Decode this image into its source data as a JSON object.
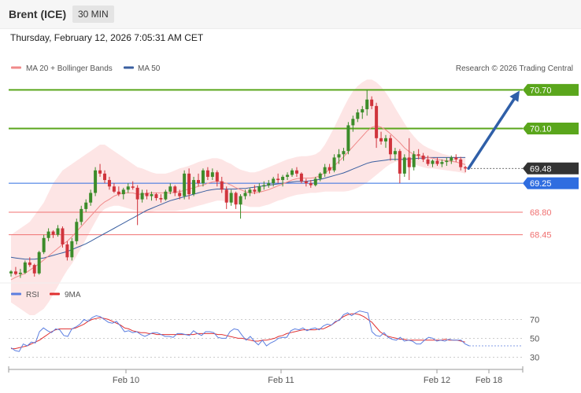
{
  "header": {
    "instrument": "Brent (ICE)",
    "interval": "30 MIN"
  },
  "timestamp": "Thursday, February 12, 2026 7:05:31 AM CET",
  "copyright": "Research © 2026 Trading Central",
  "colors": {
    "up": "#3c8c2a",
    "down": "#d0343c",
    "bollinger_fill": "#fde0e0",
    "ma20": "#f08a8a",
    "ma50": "#3a5fa0",
    "resistance": "#5aa61c",
    "pivot": "#2f6de0",
    "support": "#f07070",
    "arrow": "#2f5fa8",
    "rsi": "#5b7ee0",
    "rsi_ma": "#e03030",
    "price_tag": "#333333"
  },
  "chart_data": [
    {
      "type": "candlestick",
      "legend": [
        {
          "name": "MA 20 + Bollinger Bands",
          "color": "#f08a8a"
        },
        {
          "name": "MA 50",
          "color": "#3a5fa0"
        }
      ],
      "x_labels": [
        "Feb 10",
        "Feb 11",
        "Feb 12",
        "Feb 18"
      ],
      "ylim": [
        67.75,
        70.9
      ],
      "levels": [
        {
          "label": "70.70",
          "value": 70.7,
          "kind": "resistance"
        },
        {
          "label": "70.10",
          "value": 70.1,
          "kind": "resistance"
        },
        {
          "label": "69.25",
          "value": 69.25,
          "kind": "pivot"
        },
        {
          "label": "68.80",
          "value": 68.8,
          "kind": "support"
        },
        {
          "label": "68.45",
          "value": 68.45,
          "kind": "support"
        }
      ],
      "last_price": {
        "label": "69.48",
        "value": 69.48
      },
      "ohlc": [
        [
          67.85,
          67.9,
          67.8,
          67.88
        ],
        [
          67.88,
          67.95,
          67.82,
          67.84
        ],
        [
          67.84,
          67.92,
          67.78,
          67.86
        ],
        [
          67.86,
          68.05,
          67.84,
          68.02
        ],
        [
          68.02,
          68.1,
          67.95,
          67.98
        ],
        [
          67.98,
          68.0,
          67.8,
          67.85
        ],
        [
          67.85,
          68.2,
          67.83,
          68.18
        ],
        [
          68.18,
          68.45,
          68.15,
          68.4
        ],
        [
          68.4,
          68.55,
          68.35,
          68.5
        ],
        [
          68.5,
          68.52,
          68.4,
          68.45
        ],
        [
          68.45,
          68.6,
          68.42,
          68.55
        ],
        [
          68.55,
          68.58,
          68.25,
          68.3
        ],
        [
          68.3,
          68.35,
          68.05,
          68.1
        ],
        [
          68.1,
          68.4,
          68.05,
          68.35
        ],
        [
          68.35,
          68.7,
          68.3,
          68.65
        ],
        [
          68.65,
          68.9,
          68.6,
          68.85
        ],
        [
          68.85,
          69.0,
          68.8,
          68.95
        ],
        [
          68.95,
          69.15,
          68.9,
          69.1
        ],
        [
          69.1,
          69.5,
          69.05,
          69.45
        ],
        [
          69.45,
          69.55,
          69.35,
          69.4
        ],
        [
          69.4,
          69.45,
          69.25,
          69.3
        ],
        [
          69.3,
          69.35,
          69.15,
          69.2
        ],
        [
          69.2,
          69.25,
          69.1,
          69.12
        ],
        [
          69.12,
          69.2,
          69.05,
          69.08
        ],
        [
          69.08,
          69.18,
          69.0,
          69.15
        ],
        [
          69.15,
          69.25,
          69.1,
          69.2
        ],
        [
          69.2,
          69.28,
          69.15,
          69.18
        ],
        [
          69.18,
          69.22,
          68.6,
          69.0
        ],
        [
          69.0,
          69.15,
          68.95,
          69.1
        ],
        [
          69.1,
          69.15,
          69.0,
          69.05
        ],
        [
          69.05,
          69.12,
          68.98,
          69.08
        ],
        [
          69.08,
          69.1,
          68.98,
          69.02
        ],
        [
          69.02,
          69.08,
          68.95,
          69.0
        ],
        [
          69.0,
          69.15,
          68.98,
          69.12
        ],
        [
          69.12,
          69.25,
          69.08,
          69.2
        ],
        [
          69.2,
          69.22,
          69.05,
          69.1
        ],
        [
          69.1,
          69.15,
          69.0,
          69.05
        ],
        [
          69.05,
          69.45,
          69.0,
          69.4
        ],
        [
          69.4,
          69.48,
          69.0,
          69.08
        ],
        [
          69.08,
          69.35,
          69.05,
          69.3
        ],
        [
          69.3,
          69.4,
          69.2,
          69.25
        ],
        [
          69.25,
          69.48,
          69.2,
          69.45
        ],
        [
          69.45,
          69.5,
          69.3,
          69.35
        ],
        [
          69.35,
          69.48,
          69.3,
          69.42
        ],
        [
          69.42,
          69.45,
          69.2,
          69.28
        ],
        [
          69.28,
          69.35,
          69.1,
          69.15
        ],
        [
          69.15,
          69.2,
          68.85,
          68.95
        ],
        [
          68.95,
          69.15,
          68.9,
          69.1
        ],
        [
          69.1,
          69.12,
          68.85,
          68.92
        ],
        [
          68.92,
          69.08,
          68.7,
          69.05
        ],
        [
          69.05,
          69.15,
          69.0,
          69.1
        ],
        [
          69.1,
          69.18,
          69.05,
          69.15
        ],
        [
          69.15,
          69.22,
          69.08,
          69.12
        ],
        [
          69.12,
          69.25,
          69.1,
          69.2
        ],
        [
          69.2,
          69.28,
          69.15,
          69.22
        ],
        [
          69.22,
          69.3,
          69.18,
          69.25
        ],
        [
          69.25,
          69.35,
          69.2,
          69.32
        ],
        [
          69.32,
          69.4,
          69.25,
          69.3
        ],
        [
          69.3,
          69.38,
          69.2,
          69.35
        ],
        [
          69.35,
          69.42,
          69.3,
          69.38
        ],
        [
          69.38,
          69.48,
          69.35,
          69.45
        ],
        [
          69.45,
          69.5,
          69.35,
          69.4
        ],
        [
          69.4,
          69.42,
          69.25,
          69.28
        ],
        [
          69.28,
          69.32,
          69.2,
          69.25
        ],
        [
          69.25,
          69.3,
          69.18,
          69.22
        ],
        [
          69.22,
          69.35,
          69.2,
          69.32
        ],
        [
          69.32,
          69.42,
          69.28,
          69.4
        ],
        [
          69.4,
          69.55,
          69.35,
          69.5
        ],
        [
          69.5,
          69.55,
          69.4,
          69.45
        ],
        [
          69.45,
          69.7,
          69.42,
          69.65
        ],
        [
          69.65,
          69.78,
          69.55,
          69.7
        ],
        [
          69.7,
          69.8,
          69.6,
          69.75
        ],
        [
          69.75,
          70.2,
          69.7,
          70.15
        ],
        [
          70.15,
          70.3,
          70.05,
          70.25
        ],
        [
          70.25,
          70.4,
          70.2,
          70.35
        ],
        [
          70.35,
          70.45,
          70.25,
          70.4
        ],
        [
          70.4,
          70.7,
          70.3,
          70.55
        ],
        [
          70.55,
          70.6,
          70.4,
          70.45
        ],
        [
          70.45,
          70.5,
          69.8,
          69.95
        ],
        [
          69.95,
          70.05,
          69.85,
          69.9
        ],
        [
          69.9,
          70.0,
          69.8,
          69.95
        ],
        [
          69.95,
          70.0,
          69.6,
          69.7
        ],
        [
          69.7,
          69.8,
          69.6,
          69.75
        ],
        [
          69.75,
          69.78,
          69.25,
          69.4
        ],
        [
          69.4,
          69.7,
          69.35,
          69.65
        ],
        [
          69.65,
          69.95,
          69.3,
          69.5
        ],
        [
          69.5,
          69.75,
          69.45,
          69.7
        ],
        [
          69.7,
          69.78,
          69.62,
          69.68
        ],
        [
          69.68,
          69.72,
          69.58,
          69.62
        ],
        [
          69.62,
          69.68,
          69.52,
          69.55
        ],
        [
          69.55,
          69.62,
          69.5,
          69.6
        ],
        [
          69.6,
          69.65,
          69.52,
          69.55
        ],
        [
          69.55,
          69.62,
          69.5,
          69.58
        ],
        [
          69.58,
          69.65,
          69.52,
          69.6
        ],
        [
          69.6,
          69.68,
          69.55,
          69.65
        ],
        [
          69.65,
          69.7,
          69.58,
          69.62
        ],
        [
          69.62,
          69.66,
          69.45,
          69.5
        ],
        [
          69.5,
          69.52,
          69.42,
          69.48
        ]
      ],
      "ma20": [
        67.75,
        67.79,
        67.82,
        67.85,
        67.9,
        67.95,
        68.0,
        68.06,
        68.12,
        68.18,
        68.24,
        68.3,
        68.35,
        68.42,
        68.5,
        68.58,
        68.66,
        68.74,
        68.82,
        68.9,
        68.96,
        69.0,
        69.05,
        69.08,
        69.1,
        69.1,
        69.1,
        69.08,
        69.08,
        69.09,
        69.1,
        69.1,
        69.1,
        69.1,
        69.1,
        69.11,
        69.12,
        69.14,
        69.16,
        69.18,
        69.2,
        69.22,
        69.25,
        69.27,
        69.28,
        69.27,
        69.25,
        69.22,
        69.18,
        69.15,
        69.12,
        69.1,
        69.1,
        69.11,
        69.13,
        69.15,
        69.18,
        69.21,
        69.24,
        69.27,
        69.3,
        69.32,
        69.33,
        69.33,
        69.33,
        69.34,
        69.37,
        69.41,
        69.46,
        69.52,
        69.59,
        69.66,
        69.74,
        69.82,
        69.9,
        69.98,
        70.06,
        70.12,
        70.14,
        70.12,
        70.08,
        70.02,
        69.95,
        69.88,
        69.8,
        69.74,
        69.7,
        69.67,
        69.66,
        69.65,
        69.64,
        69.62,
        69.61,
        69.6,
        69.59,
        69.58,
        69.56,
        69.54
      ],
      "ma50": [
        68.1,
        68.09,
        68.08,
        68.07,
        68.07,
        68.07,
        68.08,
        68.09,
        68.11,
        68.13,
        68.15,
        68.17,
        68.19,
        68.22,
        68.25,
        68.28,
        68.31,
        68.35,
        68.39,
        68.43,
        68.47,
        68.51,
        68.55,
        68.59,
        68.63,
        68.67,
        68.71,
        68.75,
        68.79,
        68.83,
        68.86,
        68.89,
        68.92,
        68.95,
        68.98,
        69.0,
        69.02,
        69.04,
        69.06,
        69.08,
        69.1,
        69.12,
        69.14,
        69.15,
        69.16,
        69.16,
        69.16,
        69.16,
        69.16,
        69.17,
        69.17,
        69.18,
        69.19,
        69.2,
        69.21,
        69.22,
        69.23,
        69.24,
        69.25,
        69.26,
        69.27,
        69.28,
        69.28,
        69.28,
        69.29,
        69.3,
        69.31,
        69.33,
        69.35,
        69.37,
        69.39,
        69.41,
        69.44,
        69.47,
        69.5,
        69.53,
        69.56,
        69.58,
        69.59,
        69.6,
        69.61,
        69.62,
        69.62,
        69.62,
        69.62,
        69.63,
        69.63,
        69.64,
        69.64,
        69.65,
        69.65,
        69.65,
        69.65,
        69.65,
        69.65,
        69.65,
        69.65,
        69.65
      ],
      "bb_upper": [
        68.45,
        68.5,
        68.55,
        68.6,
        68.65,
        68.75,
        68.85,
        68.95,
        69.1,
        69.25,
        69.35,
        69.45,
        69.5,
        69.55,
        69.6,
        69.65,
        69.7,
        69.75,
        69.8,
        69.85,
        69.85,
        69.8,
        69.75,
        69.7,
        69.65,
        69.6,
        69.55,
        69.5,
        69.48,
        69.45,
        69.42,
        69.4,
        69.4,
        69.4,
        69.42,
        69.45,
        69.48,
        69.5,
        69.52,
        69.55,
        69.58,
        69.6,
        69.62,
        69.64,
        69.64,
        69.62,
        69.58,
        69.55,
        69.5,
        69.46,
        69.44,
        69.42,
        69.42,
        69.44,
        69.47,
        69.5,
        69.53,
        69.56,
        69.59,
        69.62,
        69.64,
        69.66,
        69.67,
        69.67,
        69.68,
        69.7,
        69.75,
        69.85,
        69.98,
        70.12,
        70.27,
        70.42,
        70.56,
        70.68,
        70.76,
        70.82,
        70.86,
        70.86,
        70.82,
        70.75,
        70.66,
        70.55,
        70.42,
        70.3,
        70.18,
        70.07,
        69.98,
        69.9,
        69.84,
        69.8,
        69.77,
        69.74,
        69.71,
        69.69,
        69.67,
        69.66,
        69.66,
        69.66
      ],
      "bb_lower": [
        67.4,
        67.35,
        67.3,
        67.25,
        67.2,
        67.2,
        67.25,
        67.3,
        67.4,
        67.52,
        67.65,
        67.78,
        67.9,
        68.0,
        68.12,
        68.25,
        68.38,
        68.52,
        68.65,
        68.78,
        68.85,
        68.88,
        68.9,
        68.9,
        68.88,
        68.86,
        68.84,
        68.82,
        68.8,
        68.8,
        68.81,
        68.82,
        68.82,
        68.82,
        68.82,
        68.82,
        68.83,
        68.84,
        68.86,
        68.88,
        68.9,
        68.92,
        68.94,
        68.96,
        68.98,
        68.98,
        68.97,
        68.96,
        68.94,
        68.92,
        68.9,
        68.88,
        68.88,
        68.88,
        68.9,
        68.92,
        68.95,
        68.98,
        69.0,
        69.03,
        69.05,
        69.07,
        69.08,
        69.09,
        69.1,
        69.1,
        69.11,
        69.12,
        69.12,
        69.12,
        69.12,
        69.12,
        69.13,
        69.15,
        69.18,
        69.22,
        69.26,
        69.32,
        69.38,
        69.44,
        69.5,
        69.55,
        69.58,
        69.6,
        69.6,
        69.58,
        69.55,
        69.52,
        69.5,
        69.48,
        69.48,
        69.47,
        69.46,
        69.45,
        69.44,
        69.43,
        69.42,
        69.4
      ],
      "forecast_arrow": {
        "from": 69.48,
        "to": 70.7
      }
    },
    {
      "type": "line",
      "legend": [
        {
          "name": "RSI",
          "color": "#5b7ee0"
        },
        {
          "name": "9MA",
          "color": "#e03030"
        }
      ],
      "y_ticks": [
        "70",
        "50",
        "30"
      ],
      "ylim": [
        22,
        82
      ],
      "rsi": [
        40,
        37,
        36,
        44,
        42,
        46,
        45,
        57,
        61,
        58,
        56,
        60,
        59,
        53,
        52,
        60,
        62,
        65,
        70,
        68,
        72,
        74,
        73,
        70,
        67,
        66,
        68,
        63,
        57,
        58,
        56,
        57,
        54,
        52,
        54,
        56,
        56,
        54,
        52,
        52,
        51,
        55,
        55,
        54,
        53,
        58,
        55,
        53,
        57,
        57,
        56,
        51,
        50,
        50,
        57,
        60,
        59,
        53,
        48,
        52,
        47,
        43,
        48,
        42,
        45,
        47,
        50,
        51,
        51,
        58,
        60,
        59,
        61,
        58,
        60,
        61,
        59,
        63,
        65,
        64,
        68,
        69,
        75,
        77,
        74,
        77,
        79,
        78,
        77,
        57,
        53,
        52,
        56,
        51,
        49,
        48,
        51,
        47,
        48,
        47,
        44,
        44,
        48,
        51,
        50,
        47,
        48,
        47,
        49,
        48,
        48,
        48,
        44,
        42
      ],
      "rsi_ma": [
        39,
        39,
        40,
        41,
        42,
        44,
        46,
        48,
        51,
        54,
        57,
        59,
        60,
        60,
        60,
        60,
        61,
        63,
        65,
        68,
        70,
        71,
        72,
        71,
        70,
        68,
        66,
        64,
        61,
        60,
        58,
        57,
        56,
        56,
        55,
        55,
        54,
        54,
        54,
        54,
        54,
        54,
        54,
        54,
        54,
        54,
        55,
        55,
        55,
        55,
        55,
        54,
        54,
        53,
        52,
        51,
        50,
        50,
        49,
        48,
        47,
        47,
        48,
        48,
        49,
        50,
        52,
        53,
        55,
        56,
        57,
        58,
        59,
        59,
        59,
        59,
        60,
        60,
        62,
        64,
        67,
        70,
        73,
        75,
        76,
        76,
        75,
        73,
        70,
        67,
        62,
        57,
        54,
        52,
        51,
        50,
        49,
        49,
        48,
        48,
        48,
        48,
        48,
        48,
        48,
        48,
        48,
        49,
        48,
        48,
        48,
        47,
        46
      ]
    }
  ]
}
